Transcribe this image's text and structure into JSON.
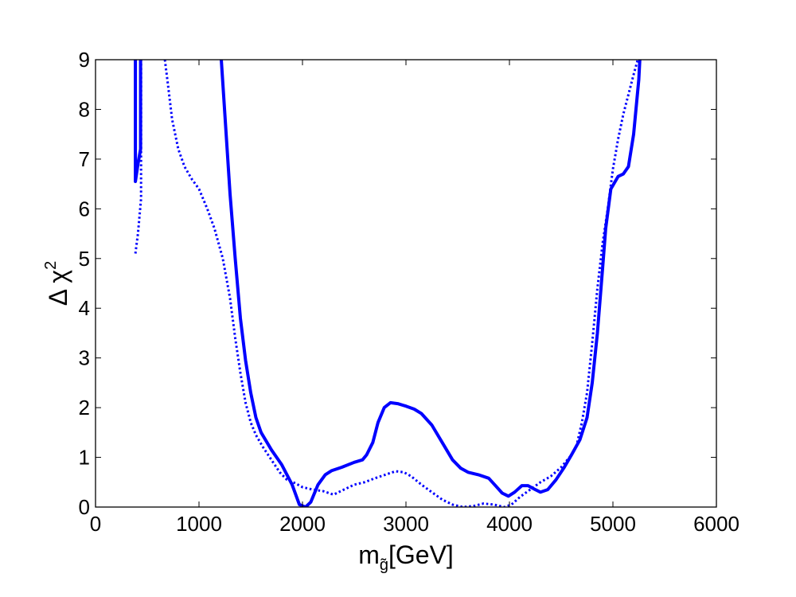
{
  "chart_data": {
    "type": "line",
    "title": "",
    "xlabel": "m",
    "xlabel_subscript": "g̃",
    "xlabel_suffix": "[GeV]",
    "ylabel": "Δ χ",
    "ylabel_superscript": "2",
    "xlim": [
      0,
      6000
    ],
    "ylim": [
      0,
      9
    ],
    "xticks": [
      0,
      1000,
      2000,
      3000,
      4000,
      5000,
      6000
    ],
    "yticks": [
      0,
      1,
      2,
      3,
      4,
      5,
      6,
      7,
      8,
      9
    ],
    "grid": false,
    "legend": "none",
    "series": [
      {
        "style": "solid",
        "color": "#0000ff",
        "segments": [
          [
            [
              385,
              9.0
            ],
            [
              385,
              6.55
            ],
            [
              410,
              6.9
            ],
            [
              435,
              7.2
            ],
            [
              435,
              9.0
            ]
          ],
          [
            [
              1215,
              9.0
            ],
            [
              1250,
              7.9
            ],
            [
              1300,
              6.3
            ],
            [
              1350,
              5.0
            ],
            [
              1400,
              3.8
            ],
            [
              1450,
              2.95
            ],
            [
              1500,
              2.3
            ],
            [
              1550,
              1.8
            ],
            [
              1600,
              1.5
            ],
            [
              1700,
              1.15
            ],
            [
              1800,
              0.85
            ],
            [
              1900,
              0.45
            ],
            [
              1970,
              0.05
            ],
            [
              2030,
              0.0
            ],
            [
              2080,
              0.1
            ],
            [
              2150,
              0.45
            ],
            [
              2220,
              0.65
            ],
            [
              2280,
              0.73
            ],
            [
              2380,
              0.8
            ],
            [
              2500,
              0.9
            ],
            [
              2580,
              0.95
            ],
            [
              2620,
              1.05
            ],
            [
              2680,
              1.3
            ],
            [
              2730,
              1.7
            ],
            [
              2790,
              2.0
            ],
            [
              2850,
              2.1
            ],
            [
              2920,
              2.08
            ],
            [
              3000,
              2.03
            ],
            [
              3080,
              1.97
            ],
            [
              3150,
              1.88
            ],
            [
              3250,
              1.65
            ],
            [
              3350,
              1.3
            ],
            [
              3450,
              0.95
            ],
            [
              3530,
              0.78
            ],
            [
              3600,
              0.7
            ],
            [
              3700,
              0.65
            ],
            [
              3800,
              0.58
            ],
            [
              3870,
              0.42
            ],
            [
              3930,
              0.28
            ],
            [
              3990,
              0.22
            ],
            [
              4050,
              0.3
            ],
            [
              4120,
              0.43
            ],
            [
              4180,
              0.43
            ],
            [
              4250,
              0.35
            ],
            [
              4300,
              0.3
            ],
            [
              4370,
              0.35
            ],
            [
              4450,
              0.55
            ],
            [
              4530,
              0.8
            ],
            [
              4600,
              1.05
            ],
            [
              4680,
              1.35
            ],
            [
              4750,
              1.8
            ],
            [
              4800,
              2.5
            ],
            [
              4850,
              3.5
            ],
            [
              4900,
              4.8
            ],
            [
              4930,
              5.6
            ],
            [
              4980,
              6.4
            ],
            [
              5050,
              6.65
            ],
            [
              5100,
              6.7
            ],
            [
              5150,
              6.85
            ],
            [
              5200,
              7.5
            ],
            [
              5250,
              8.6
            ],
            [
              5260,
              9.0
            ]
          ]
        ]
      },
      {
        "style": "dotted",
        "color": "#0000ff",
        "segments": [
          [
            [
              385,
              5.1
            ],
            [
              410,
              5.5
            ],
            [
              440,
              6.2
            ],
            [
              440,
              9.0
            ]
          ],
          [
            [
              670,
              9.0
            ],
            [
              700,
              8.5
            ],
            [
              740,
              7.8
            ],
            [
              800,
              7.2
            ],
            [
              860,
              6.85
            ],
            [
              930,
              6.6
            ],
            [
              1000,
              6.4
            ],
            [
              1080,
              6.0
            ],
            [
              1150,
              5.6
            ],
            [
              1230,
              5.0
            ],
            [
              1300,
              4.2
            ],
            [
              1350,
              3.4
            ],
            [
              1400,
              2.7
            ],
            [
              1450,
              2.1
            ],
            [
              1500,
              1.7
            ],
            [
              1550,
              1.45
            ],
            [
              1620,
              1.2
            ],
            [
              1700,
              0.95
            ],
            [
              1780,
              0.7
            ],
            [
              1850,
              0.55
            ],
            [
              1930,
              0.48
            ],
            [
              2000,
              0.4
            ],
            [
              2100,
              0.35
            ],
            [
              2200,
              0.32
            ],
            [
              2300,
              0.25
            ],
            [
              2400,
              0.35
            ],
            [
              2500,
              0.45
            ],
            [
              2600,
              0.5
            ],
            [
              2700,
              0.58
            ],
            [
              2800,
              0.65
            ],
            [
              2900,
              0.72
            ],
            [
              2980,
              0.7
            ],
            [
              3050,
              0.62
            ],
            [
              3150,
              0.45
            ],
            [
              3250,
              0.3
            ],
            [
              3350,
              0.15
            ],
            [
              3450,
              0.05
            ],
            [
              3550,
              0.0
            ],
            [
              3650,
              0.02
            ],
            [
              3750,
              0.07
            ],
            [
              3850,
              0.05
            ],
            [
              3950,
              0.0
            ],
            [
              4020,
              0.05
            ],
            [
              4100,
              0.2
            ],
            [
              4200,
              0.35
            ],
            [
              4300,
              0.5
            ],
            [
              4400,
              0.62
            ],
            [
              4500,
              0.8
            ],
            [
              4600,
              1.05
            ],
            [
              4650,
              1.25
            ],
            [
              4700,
              1.7
            ],
            [
              4750,
              2.3
            ],
            [
              4800,
              3.3
            ],
            [
              4850,
              4.4
            ],
            [
              4900,
              5.3
            ],
            [
              4950,
              6.0
            ],
            [
              5000,
              6.8
            ],
            [
              5050,
              7.4
            ],
            [
              5100,
              7.9
            ],
            [
              5150,
              8.3
            ],
            [
              5200,
              8.7
            ],
            [
              5240,
              9.0
            ]
          ]
        ]
      }
    ]
  }
}
